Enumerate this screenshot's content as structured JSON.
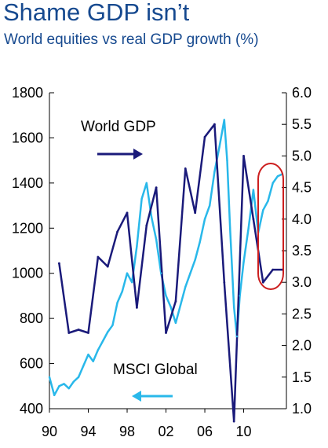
{
  "header": {
    "title": "Shame GDP isn’t",
    "subtitle": "World equities vs real GDP growth (%)"
  },
  "chart_data": {
    "type": "line",
    "title": "Shame GDP isn’t",
    "subtitle": "World equities vs real GDP growth (%)",
    "x_ticks": [
      "90",
      "94",
      "98",
      "02",
      "06",
      "10"
    ],
    "xlim": [
      1990,
      2014.4
    ],
    "left_axis": {
      "ticks": [
        400,
        600,
        800,
        1000,
        1200,
        1400,
        1600,
        1800
      ],
      "ylim": [
        400,
        1800
      ]
    },
    "right_axis": {
      "ticks": [
        "1.0",
        "1.5",
        "2.0",
        "2.5",
        "3.0",
        "3.5",
        "4.0",
        "4.5",
        "5.0",
        "5.5",
        "6.0"
      ],
      "ylim": [
        1.0,
        6.0
      ]
    },
    "colors": {
      "world_gdp": "#1a1a7a",
      "msci": "#29b8ea",
      "highlight": "#cc1f1f"
    },
    "series": [
      {
        "name": "World GDP",
        "axis": "right",
        "color": "#1a1a7a",
        "x": [
          1991,
          1992,
          1993,
          1994,
          1995,
          1996,
          1997,
          1998,
          1999,
          2000,
          2001,
          2002,
          2003,
          2004,
          2005,
          2006,
          2007,
          2008,
          2009,
          2010,
          2011,
          2012,
          2013,
          2014
        ],
        "values": [
          3.3,
          2.2,
          2.25,
          2.2,
          3.4,
          3.25,
          3.8,
          4.1,
          2.6,
          3.9,
          4.5,
          2.2,
          2.7,
          4.8,
          4.1,
          5.3,
          5.5,
          3.0,
          0.8,
          5.0,
          4.0,
          3.0,
          3.2,
          3.2
        ]
      },
      {
        "name": "MSCI Global",
        "axis": "left",
        "color": "#29b8ea",
        "x": [
          1990,
          1990.5,
          1991,
          1991.5,
          1992,
          1992.5,
          1993,
          1993.5,
          1994,
          1994.5,
          1995,
          1995.5,
          1996,
          1996.5,
          1997,
          1997.5,
          1998,
          1998.5,
          1999,
          1999.5,
          2000,
          2000.5,
          2001,
          2001.5,
          2002,
          2002.5,
          2003,
          2003.5,
          2004,
          2004.5,
          2005,
          2005.5,
          2006,
          2006.5,
          2007,
          2007.5,
          2008,
          2008.3,
          2008.6,
          2009,
          2009.3,
          2009.6,
          2010,
          2010.5,
          2011,
          2011.5,
          2012,
          2012.5,
          2013,
          2013.5,
          2014
        ],
        "values": [
          540,
          460,
          500,
          510,
          490,
          520,
          540,
          590,
          640,
          610,
          660,
          700,
          740,
          770,
          870,
          920,
          1000,
          960,
          1120,
          1330,
          1400,
          1250,
          1150,
          1000,
          900,
          850,
          780,
          860,
          940,
          1000,
          1060,
          1140,
          1240,
          1300,
          1450,
          1560,
          1680,
          1500,
          1200,
          850,
          720,
          900,
          1050,
          1200,
          1370,
          1180,
          1280,
          1320,
          1400,
          1430,
          1440
        ]
      }
    ],
    "annotations": [
      "World GDP",
      "MSCI Global"
    ]
  }
}
